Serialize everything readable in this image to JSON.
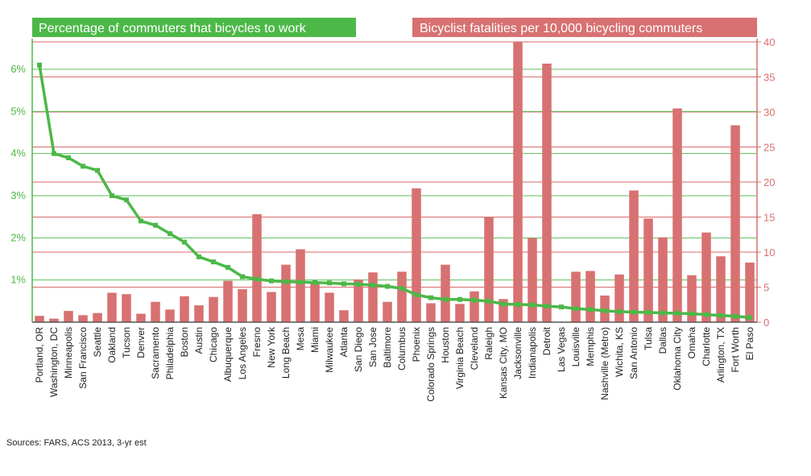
{
  "chart_data": {
    "type": "bar",
    "categories": [
      "Portland, OR",
      "Washington, DC",
      "Minneapolis",
      "San Francisco",
      "Seattle",
      "Oakland",
      "Tucson",
      "Denver",
      "Sacramento",
      "Philadelphia",
      "Boston",
      "Austin",
      "Chicago",
      "Albuquerque",
      "Los Angeles",
      "Fresno",
      "New York",
      "Long Beach",
      "Mesa",
      "Miami",
      "Milwaukee",
      "Atlanta",
      "San Diego",
      "San Jose",
      "Baltimore",
      "Columbus",
      "Phoenix",
      "Colorado Springs",
      "Houston",
      "Virginia Beach",
      "Cleveland",
      "Raleigh",
      "Kansas City, MO",
      "Jacksonville",
      "Indianapolis",
      "Detroit",
      "Las Vegas",
      "Louisville",
      "Memphis",
      "Nashville (Metro)",
      "Wichita, KS",
      "San Antonio",
      "Tulsa",
      "Dallas",
      "Oklahoma City",
      "Omaha",
      "Charlotte",
      "Arlington, TX",
      "Fort Worth",
      "El Paso"
    ],
    "series": [
      {
        "name": "Bicyclist fatalities per 10,000 bicycling commuters",
        "kind": "bar",
        "axis": "right",
        "color": "#d87171",
        "values": [
          0.9,
          0.5,
          1.6,
          1.0,
          1.3,
          4.2,
          4.0,
          1.2,
          2.9,
          1.8,
          3.7,
          2.4,
          3.6,
          5.9,
          4.7,
          15.4,
          4.3,
          8.2,
          10.4,
          5.7,
          4.2,
          1.7,
          6.1,
          7.1,
          2.9,
          7.2,
          19.1,
          2.7,
          8.2,
          2.6,
          4.4,
          15.0,
          3.3,
          40.0,
          12.0,
          36.9,
          0.0,
          7.2,
          7.3,
          3.8,
          6.8,
          18.8,
          14.8,
          12.1,
          30.5,
          6.7,
          12.8,
          9.4,
          28.1,
          8.5
        ]
      },
      {
        "name": "Percentage of commuters that bicycles to work",
        "kind": "line",
        "axis": "left",
        "color": "#4cb848",
        "values": [
          6.1,
          4.0,
          3.9,
          3.7,
          3.6,
          3.0,
          2.9,
          2.4,
          2.3,
          2.1,
          1.9,
          1.55,
          1.43,
          1.3,
          1.08,
          1.02,
          0.98,
          0.96,
          0.95,
          0.94,
          0.93,
          0.91,
          0.9,
          0.88,
          0.85,
          0.8,
          0.65,
          0.58,
          0.54,
          0.54,
          0.52,
          0.5,
          0.43,
          0.42,
          0.41,
          0.38,
          0.36,
          0.32,
          0.3,
          0.27,
          0.25,
          0.24,
          0.23,
          0.22,
          0.21,
          0.2,
          0.18,
          0.16,
          0.14,
          0.11
        ]
      }
    ],
    "left_axis": {
      "ticks": [
        "1%",
        "2%",
        "3%",
        "4%",
        "5%",
        "6%"
      ],
      "tick_values": [
        1,
        2,
        3,
        4,
        5,
        6
      ],
      "ylim": [
        0,
        6.65
      ]
    },
    "right_axis": {
      "ticks": [
        "0",
        "5",
        "10",
        "15",
        "20",
        "25",
        "30",
        "35",
        "40"
      ],
      "tick_values": [
        0,
        5,
        10,
        15,
        20,
        25,
        30,
        35,
        40
      ],
      "ylim": [
        0,
        40
      ]
    },
    "grid": true,
    "left_title": "Percentage of commuters that bicycles to work",
    "right_title": "Bicyclist fatalities per 10,000 bicycling commuters"
  },
  "source_note": "Sources: FARS, ACS 2013, 3-yr est",
  "colors": {
    "green": "#4cb848",
    "red": "#d87171",
    "green_grid": "#5cbf58",
    "red_grid": "#d96a6a"
  }
}
